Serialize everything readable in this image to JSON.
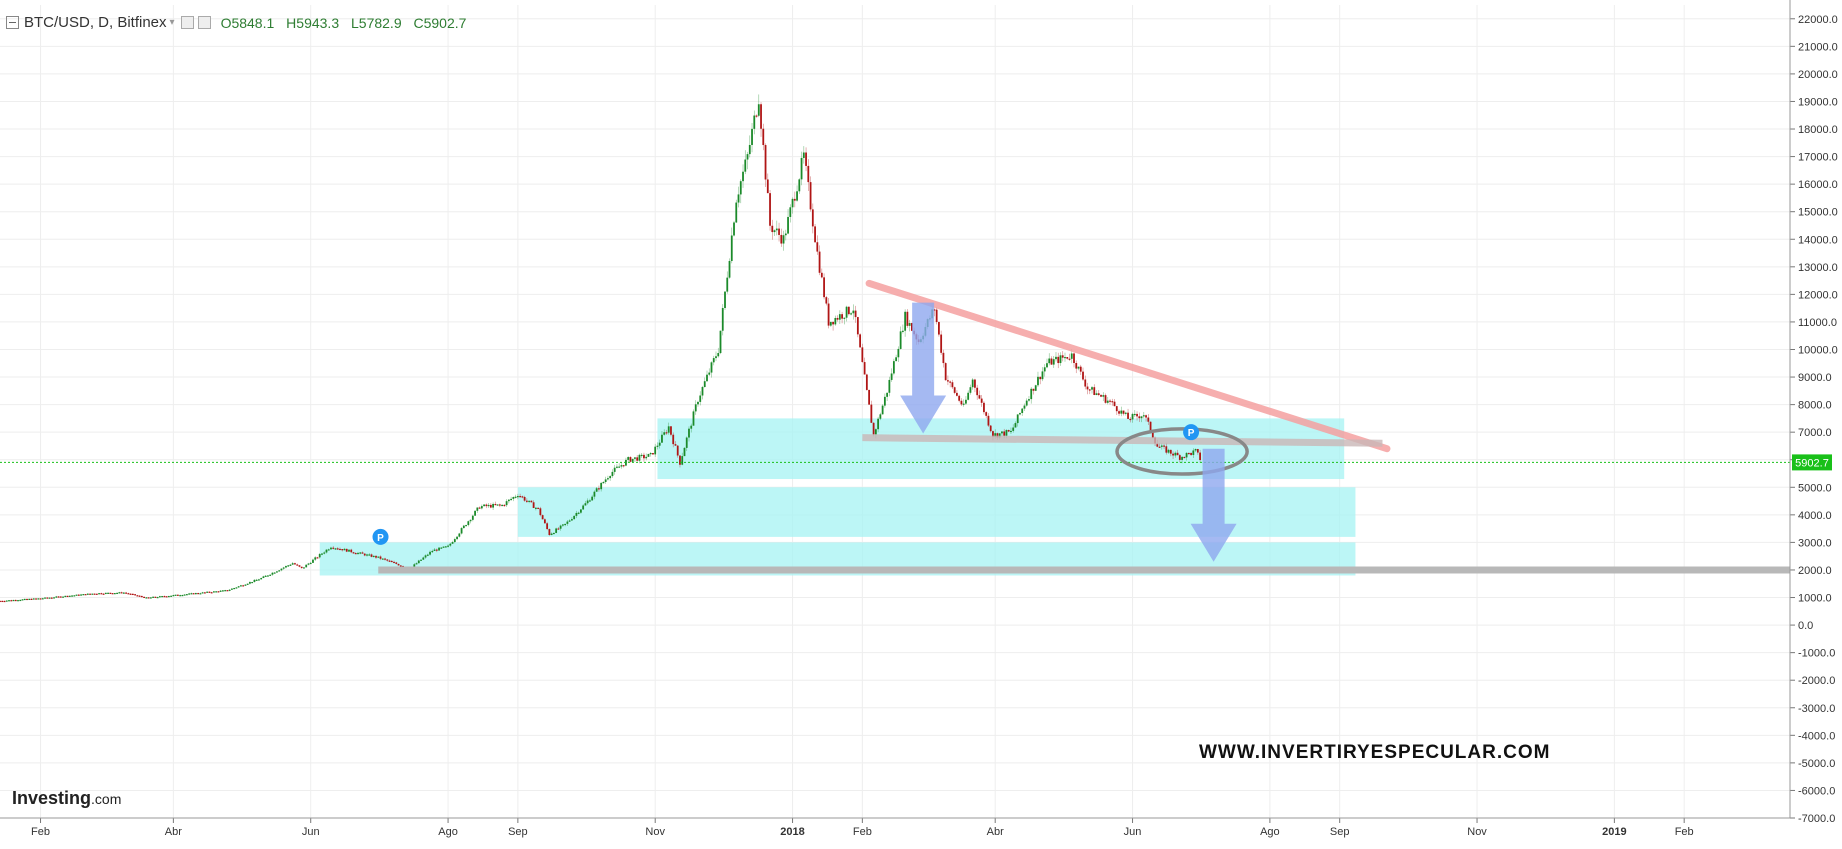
{
  "header": {
    "symbol": "BTC/USD, D, Bitfinex",
    "open": "O5848.1",
    "high": "H5943.3",
    "low": "L5782.9",
    "close": "C5902.7"
  },
  "price_badge": "5902.7",
  "watermark": "WWW.INVERTIRYESPECULAR.COM",
  "logo": {
    "main": "Investing",
    "suffix": ".com"
  },
  "annotation_marker": "P",
  "colors": {
    "up": "#1b8a2a",
    "down": "#b01515",
    "zone": "#a5f3f3",
    "downtrend": "#f4a0a0",
    "support": "#b8b8b8",
    "arrow": "#8fa8ef",
    "marker": "#2196f3",
    "current_price": "#19c019"
  },
  "chart_data": {
    "type": "line",
    "series_style": "candlestick",
    "ylim": [
      -7000,
      22500
    ],
    "yticks": [
      "22000.0",
      "21000.0",
      "20000.0",
      "19000.0",
      "18000.0",
      "17000.0",
      "16000.0",
      "15000.0",
      "14000.0",
      "13000.0",
      "12000.0",
      "11000.0",
      "10000.0",
      "9000.0",
      "8000.0",
      "7000.0",
      "6000.0",
      "5000.0",
      "4000.0",
      "3000.0",
      "2000.0",
      "1000.0",
      "0.0",
      "-1000.0",
      "-2000.0",
      "-3000.0",
      "-4000.0",
      "-5000.0",
      "-6000.0",
      "-7000.0"
    ],
    "xticks": [
      {
        "label": "Feb",
        "date": "2017-02-01"
      },
      {
        "label": "Abr",
        "date": "2017-04-01"
      },
      {
        "label": "Jun",
        "date": "2017-06-01"
      },
      {
        "label": "Ago",
        "date": "2017-08-01"
      },
      {
        "label": "Sep",
        "date": "2017-09-01"
      },
      {
        "label": "Nov",
        "date": "2017-11-01"
      },
      {
        "label": "2018",
        "date": "2018-01-01"
      },
      {
        "label": "Feb",
        "date": "2018-02-01"
      },
      {
        "label": "Abr",
        "date": "2018-04-01"
      },
      {
        "label": "Jun",
        "date": "2018-06-01"
      },
      {
        "label": "Ago",
        "date": "2018-08-01"
      },
      {
        "label": "Sep",
        "date": "2018-09-01"
      },
      {
        "label": "Nov",
        "date": "2018-11-01"
      },
      {
        "label": "2019",
        "date": "2019-01-01"
      },
      {
        "label": "Feb",
        "date": "2019-02-01"
      }
    ],
    "x_range": [
      "2017-01-14",
      "2019-03-20"
    ],
    "price": [
      {
        "x": "2017-01-14",
        "y": 880
      },
      {
        "x": "2017-02-01",
        "y": 970
      },
      {
        "x": "2017-02-25",
        "y": 1150
      },
      {
        "x": "2017-03-10",
        "y": 1180
      },
      {
        "x": "2017-03-20",
        "y": 990
      },
      {
        "x": "2017-04-01",
        "y": 1080
      },
      {
        "x": "2017-04-25",
        "y": 1260
      },
      {
        "x": "2017-05-10",
        "y": 1700
      },
      {
        "x": "2017-05-24",
        "y": 2250
      },
      {
        "x": "2017-05-28",
        "y": 2050
      },
      {
        "x": "2017-06-10",
        "y": 2850
      },
      {
        "x": "2017-06-20",
        "y": 2650
      },
      {
        "x": "2017-07-01",
        "y": 2450
      },
      {
        "x": "2017-07-15",
        "y": 2050
      },
      {
        "x": "2017-07-25",
        "y": 2700
      },
      {
        "x": "2017-08-01",
        "y": 2850
      },
      {
        "x": "2017-08-15",
        "y": 4300
      },
      {
        "x": "2017-08-25",
        "y": 4350
      },
      {
        "x": "2017-09-01",
        "y": 4750
      },
      {
        "x": "2017-09-10",
        "y": 4200
      },
      {
        "x": "2017-09-15",
        "y": 3300
      },
      {
        "x": "2017-09-22",
        "y": 3650
      },
      {
        "x": "2017-10-01",
        "y": 4400
      },
      {
        "x": "2017-10-12",
        "y": 5500
      },
      {
        "x": "2017-10-20",
        "y": 6000
      },
      {
        "x": "2017-10-30",
        "y": 6150
      },
      {
        "x": "2017-11-07",
        "y": 7200
      },
      {
        "x": "2017-11-12",
        "y": 5900
      },
      {
        "x": "2017-11-20",
        "y": 8200
      },
      {
        "x": "2017-11-29",
        "y": 10000
      },
      {
        "x": "2017-12-07",
        "y": 15500
      },
      {
        "x": "2017-12-12",
        "y": 17000
      },
      {
        "x": "2017-12-17",
        "y": 19200
      },
      {
        "x": "2017-12-22",
        "y": 14500
      },
      {
        "x": "2017-12-28",
        "y": 14000
      },
      {
        "x": "2018-01-06",
        "y": 17000
      },
      {
        "x": "2018-01-12",
        "y": 13500
      },
      {
        "x": "2018-01-17",
        "y": 11000
      },
      {
        "x": "2018-01-28",
        "y": 11500
      },
      {
        "x": "2018-02-06",
        "y": 6900
      },
      {
        "x": "2018-02-12",
        "y": 8500
      },
      {
        "x": "2018-02-20",
        "y": 11200
      },
      {
        "x": "2018-02-26",
        "y": 10300
      },
      {
        "x": "2018-03-05",
        "y": 11500
      },
      {
        "x": "2018-03-10",
        "y": 9000
      },
      {
        "x": "2018-03-18",
        "y": 7900
      },
      {
        "x": "2018-03-22",
        "y": 8900
      },
      {
        "x": "2018-03-31",
        "y": 6900
      },
      {
        "x": "2018-04-08",
        "y": 7000
      },
      {
        "x": "2018-04-15",
        "y": 8200
      },
      {
        "x": "2018-04-24",
        "y": 9500
      },
      {
        "x": "2018-05-05",
        "y": 9800
      },
      {
        "x": "2018-05-12",
        "y": 8600
      },
      {
        "x": "2018-05-22",
        "y": 8100
      },
      {
        "x": "2018-05-30",
        "y": 7500
      },
      {
        "x": "2018-06-06",
        "y": 7650
      },
      {
        "x": "2018-06-12",
        "y": 6500
      },
      {
        "x": "2018-06-22",
        "y": 6100
      },
      {
        "x": "2018-06-29",
        "y": 6300
      },
      {
        "x": "2018-07-02",
        "y": 5903
      }
    ],
    "annotations": {
      "zones": [
        {
          "x0": "2017-06-05",
          "x1": "2018-09-08",
          "y0": 1800,
          "y1": 3000
        },
        {
          "x0": "2017-09-01",
          "x1": "2018-09-08",
          "y0": 3200,
          "y1": 5000
        },
        {
          "x0": "2017-11-02",
          "x1": "2018-09-03",
          "y0": 5300,
          "y1": 7500
        }
      ],
      "downtrend_line": {
        "x0": "2018-02-04",
        "y0": 12400,
        "x1": "2018-09-22",
        "y1": 6400
      },
      "neckline": {
        "x0": "2018-02-01",
        "y0": 6800,
        "x1": "2018-09-20",
        "y1": 6600
      },
      "support_line": {
        "x0": "2017-07-01",
        "x1": "2019-03-20",
        "y": 2000
      },
      "arrows": [
        {
          "x": "2018-02-28",
          "y_top": 11700,
          "y_tip": 6950
        },
        {
          "x": "2018-07-07",
          "y_top": 6400,
          "y_tip": 2300
        }
      ],
      "ellipse": {
        "x": "2018-06-23",
        "y": 6300,
        "rx_days": 17,
        "ry_value": 820
      },
      "markers": [
        {
          "x": "2017-07-02",
          "y": 3200
        },
        {
          "x": "2018-06-27",
          "y": 7000
        }
      ]
    }
  }
}
